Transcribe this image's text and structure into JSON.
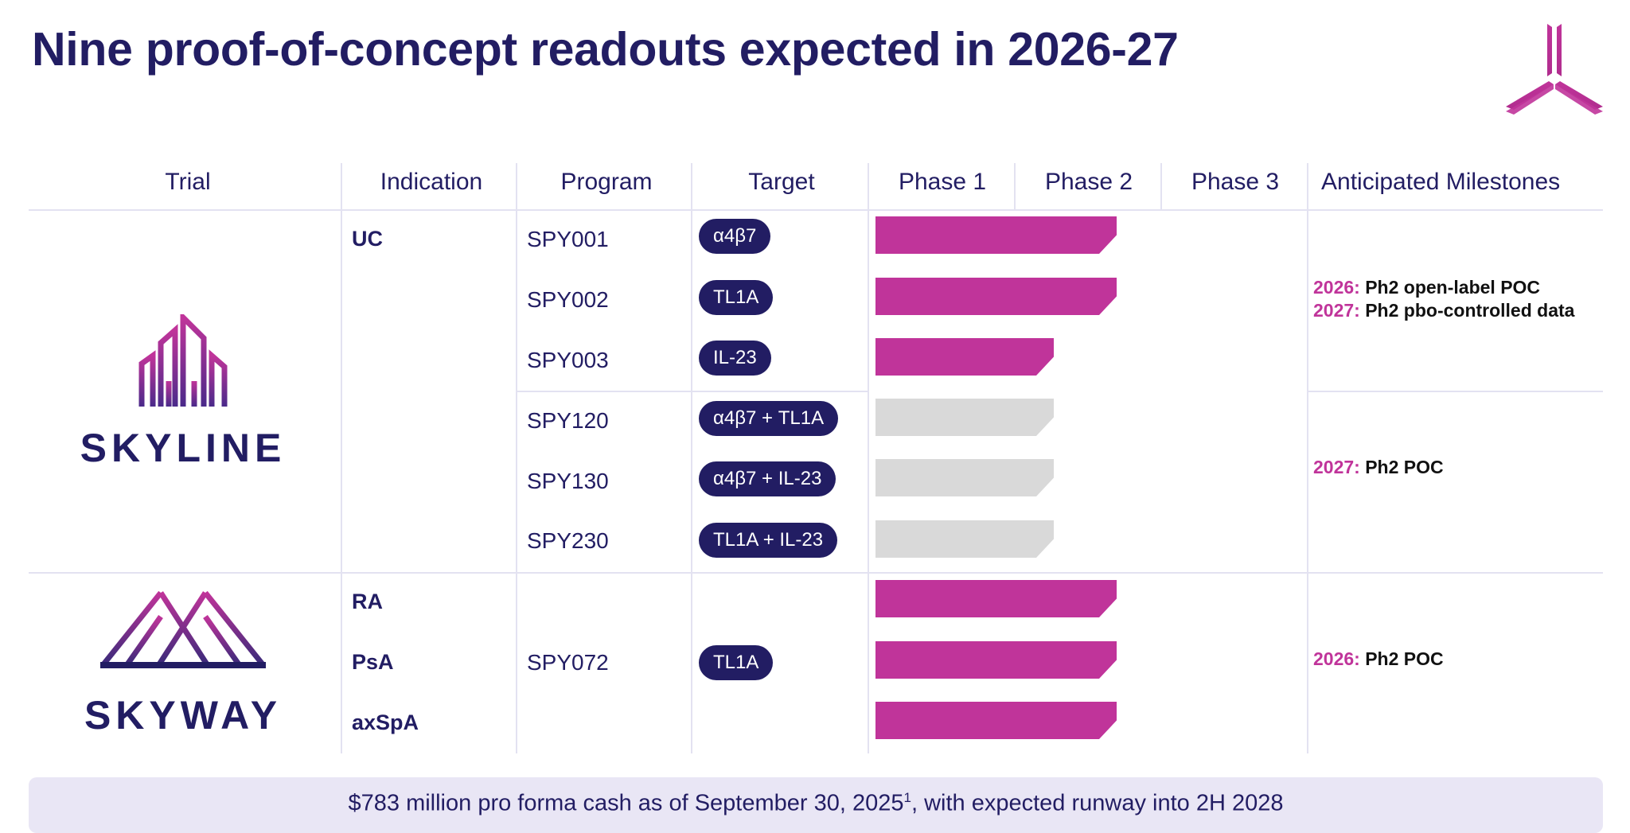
{
  "title": "Nine proof-of-concept readouts expected in 2026-27",
  "colors": {
    "navy": "#221d63",
    "magenta": "#c0349a",
    "gray_bar": "#d9d9d9",
    "footer_bg": "#e9e6f5"
  },
  "headers": [
    "Trial",
    "Indication",
    "Program",
    "Target",
    "Phase 1",
    "Phase 2",
    "Phase 3",
    "Anticipated Milestones"
  ],
  "phase_scale": {
    "min": 0,
    "max": 3,
    "note_units": "phase"
  },
  "trials": [
    {
      "name": "SKYLINE",
      "logo": "skyline-logo"
    },
    {
      "name": "SKYWAY",
      "logo": "skyway-logo"
    }
  ],
  "rows": [
    {
      "indication": "UC",
      "program": "SPY001",
      "target": "α4β7",
      "phase_progress": 1.7,
      "status": "active"
    },
    {
      "indication": "",
      "program": "SPY002",
      "target": "TL1A",
      "phase_progress": 1.7,
      "status": "active"
    },
    {
      "indication": "",
      "program": "SPY003",
      "target": "IL-23",
      "phase_progress": 1.25,
      "status": "active"
    },
    {
      "indication": "",
      "program": "SPY120",
      "target": "α4β7 + TL1A",
      "phase_progress": 1.25,
      "status": "planned"
    },
    {
      "indication": "",
      "program": "SPY130",
      "target": "α4β7 + IL-23",
      "phase_progress": 1.25,
      "status": "planned"
    },
    {
      "indication": "",
      "program": "SPY230",
      "target": "TL1A + IL-23",
      "phase_progress": 1.25,
      "status": "planned"
    },
    {
      "indication": "RA",
      "program": "",
      "target": "",
      "phase_progress": 1.7,
      "status": "active"
    },
    {
      "indication": "PsA",
      "program": "SPY072",
      "target": "TL1A",
      "phase_progress": 1.7,
      "status": "active"
    },
    {
      "indication": "axSpA",
      "program": "",
      "target": "",
      "phase_progress": 1.7,
      "status": "active"
    }
  ],
  "milestones": [
    {
      "lines": [
        {
          "year": "2026:",
          "text": " Ph2 open-label POC"
        },
        {
          "year": "2027:",
          "text": " Ph2 pbo-controlled data"
        }
      ]
    },
    {
      "lines": [
        {
          "year": "2027:",
          "text": " Ph2 POC"
        }
      ]
    },
    {
      "lines": [
        {
          "year": "2026:",
          "text": " Ph2 POC"
        }
      ]
    }
  ],
  "footer": {
    "text_before": "$783 million pro forma cash as of September 30, 2025",
    "superscript": "1",
    "text_after": ", with expected runway into 2H 2028"
  }
}
